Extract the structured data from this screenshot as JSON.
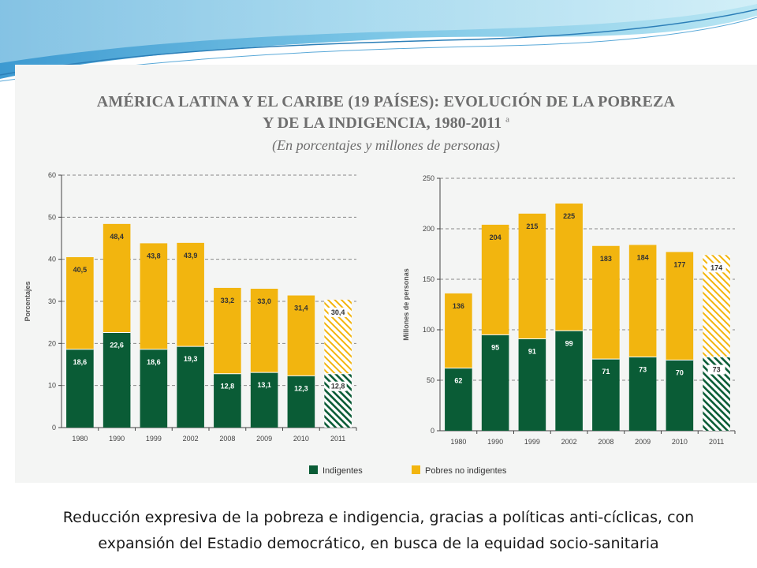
{
  "title_line1": "AMÉRICA LATINA Y EL CARIBE (19 PAÍSES): EVOLUCIÓN DE LA POBREZA",
  "title_line2": "Y DE LA INDIGENCIA, 1980-2011",
  "title_note": "a",
  "subtitle": "(En porcentajes y millones de personas)",
  "legend": {
    "indigentes": "Indigentes",
    "pobres": "Pobres no indigentes"
  },
  "colors": {
    "indigentes": "#0a5c36",
    "pobres": "#f2b50f"
  },
  "caption": {
    "line1": "Reducción expresiva de la pobreza e indigencia, gracias a políticas anti-cíclicas, con",
    "line2": "expansión del Estadio democrático, en busca de la equidad socio-sanitaria"
  },
  "chart_data": [
    {
      "type": "bar",
      "ylabel": "Porcentajes",
      "ylim": [
        0,
        60
      ],
      "yticks": [
        0,
        10,
        20,
        30,
        40,
        50,
        60
      ],
      "categories": [
        "1980",
        "1990",
        "1999",
        "2002",
        "2008",
        "2009",
        "2010",
        "2011"
      ],
      "series": [
        {
          "name": "Indigentes",
          "values": [
            18.6,
            22.6,
            18.6,
            19.3,
            12.8,
            13.1,
            12.3,
            12.8
          ],
          "labels": [
            "18,6",
            "22,6",
            "18,6",
            "19,3",
            "12,8",
            "13,1",
            "12,3",
            "12,8"
          ]
        },
        {
          "name": "Pobres no indigentes",
          "totals": [
            40.5,
            48.4,
            43.8,
            43.9,
            33.2,
            33.0,
            31.4,
            30.4
          ],
          "labels": [
            "40,5",
            "48,4",
            "43,8",
            "43,9",
            "33,2",
            "33,0",
            "31,4",
            "30,4"
          ]
        }
      ],
      "projected_last": true,
      "grid": "dashed"
    },
    {
      "type": "bar",
      "ylabel": "Millones de personas",
      "ylim": [
        0,
        250
      ],
      "yticks": [
        0,
        50,
        100,
        150,
        200,
        250
      ],
      "categories": [
        "1980",
        "1990",
        "1999",
        "2002",
        "2008",
        "2009",
        "2010",
        "2011"
      ],
      "series": [
        {
          "name": "Indigentes",
          "values": [
            62,
            95,
            91,
            99,
            71,
            73,
            70,
            73
          ],
          "labels": [
            "62",
            "95",
            "91",
            "99",
            "71",
            "73",
            "70",
            "73"
          ]
        },
        {
          "name": "Pobres no indigentes",
          "totals": [
            136,
            204,
            215,
            225,
            183,
            184,
            177,
            174
          ],
          "labels": [
            "136",
            "204",
            "215",
            "225",
            "183",
            "184",
            "177",
            "174"
          ]
        }
      ],
      "projected_last": true,
      "grid": "dashed"
    }
  ]
}
